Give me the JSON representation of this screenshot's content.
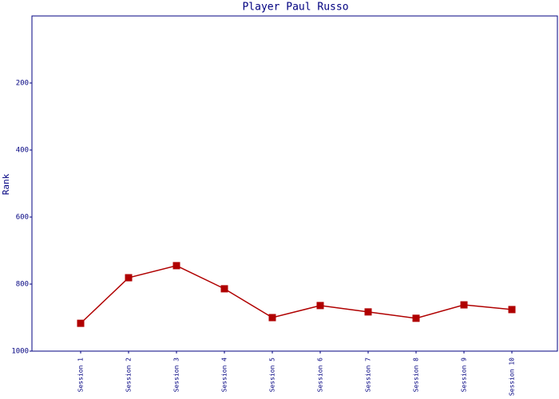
{
  "chart_data": {
    "type": "line",
    "title": "Player Paul Russo",
    "y_label": "Rank",
    "categories": [
      "Session 1",
      "Session 2",
      "Session 3",
      "Session 4",
      "Session 5",
      "Session 6",
      "Session 7",
      "Session 8",
      "Session 9",
      "Session 10"
    ],
    "series": [
      {
        "name": "Rank",
        "color": "#b00000",
        "values": [
          917,
          781,
          745,
          814,
          900,
          864,
          883,
          902,
          862,
          876
        ]
      }
    ],
    "ylim": [
      1000,
      0
    ],
    "yticks": [
      200,
      400,
      600,
      800,
      1000
    ]
  }
}
